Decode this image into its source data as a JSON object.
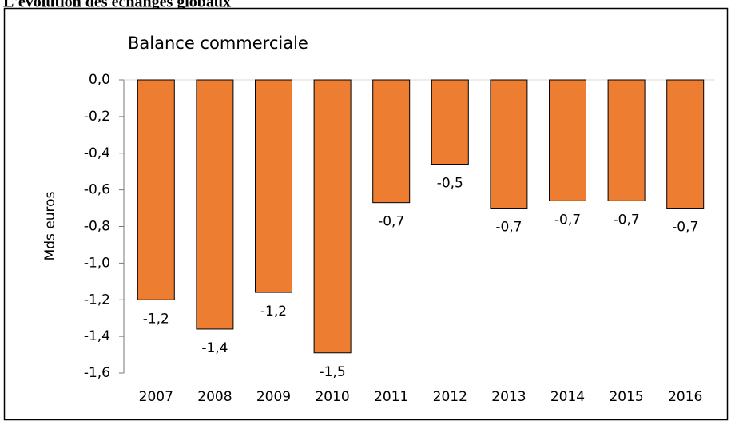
{
  "header": {
    "title": "L'évolution des échanges globaux"
  },
  "chart_data": {
    "type": "bar",
    "title": "Balance commerciale",
    "y_label": "Mds euros",
    "categories": [
      "2007",
      "2008",
      "2009",
      "2010",
      "2011",
      "2012",
      "2013",
      "2014",
      "2015",
      "2016"
    ],
    "values": [
      -1.2,
      -1.36,
      -1.16,
      -1.49,
      -0.67,
      -0.46,
      -0.7,
      -0.66,
      -0.66,
      -0.7
    ],
    "value_labels": [
      "-1,2",
      "-1,4",
      "-1,2",
      "-1,5",
      "-0,7",
      "-0,5",
      "-0,7",
      "-0,7",
      "-0,7",
      "-0,7"
    ],
    "color": "#ed7d31",
    "ylim": [
      -1.6,
      0
    ],
    "yticks": [
      {
        "value": 0,
        "label": "0,0"
      },
      {
        "value": -0.2,
        "label": "-0,2"
      },
      {
        "value": -0.4,
        "label": "-0,4"
      },
      {
        "value": -0.6,
        "label": "-0,6"
      },
      {
        "value": -0.8,
        "label": "-0,8"
      },
      {
        "value": -1.0,
        "label": "-1,0"
      },
      {
        "value": -1.2,
        "label": "-1,2"
      },
      {
        "value": -1.4,
        "label": "-1,4"
      },
      {
        "value": -1.6,
        "label": "-1,6"
      }
    ]
  }
}
